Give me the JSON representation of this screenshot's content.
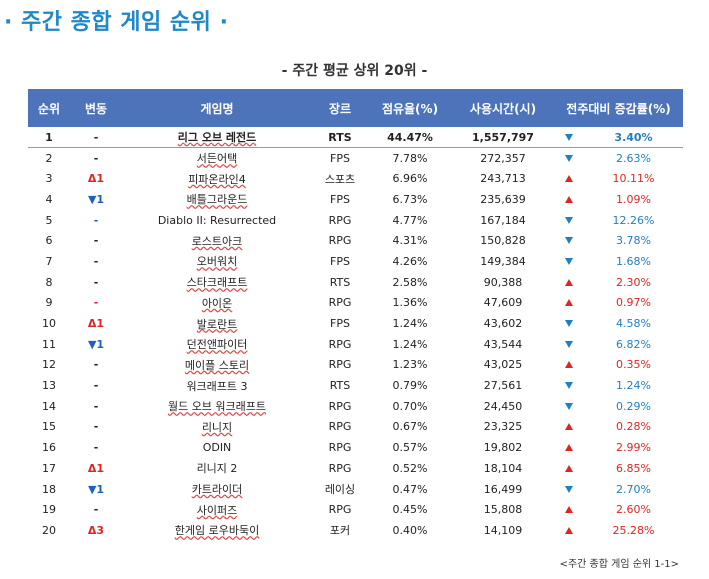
{
  "title": "· 주간 종합 게임 순위 ·",
  "subtitle": "- 주간 평균 상위 20위 -",
  "headers": [
    "순위",
    "변동",
    "게임명",
    "장르",
    "점유율(%)",
    "사용시간(시)",
    "전주대비 증감률(%)"
  ],
  "rows": [
    {
      "rank": "1",
      "change": "-",
      "change_dir": "flat",
      "game": "리그 오브 레전드",
      "genre": "RTS",
      "share": "44.47%",
      "hours": "1,557,797",
      "trend": "down",
      "delta": "3.40%"
    },
    {
      "rank": "2",
      "change": "-",
      "change_dir": "flat",
      "game": "서든어택",
      "genre": "FPS",
      "share": "7.78%",
      "hours": "272,357",
      "trend": "down",
      "delta": "2.63%"
    },
    {
      "rank": "3",
      "change": "Δ1",
      "change_dir": "up",
      "game": "피파온라인4",
      "genre": "스포츠",
      "share": "6.96%",
      "hours": "243,713",
      "trend": "up",
      "delta": "10.11%"
    },
    {
      "rank": "4",
      "change": "▼1",
      "change_dir": "down",
      "game": "배틀그라운드",
      "genre": "FPS",
      "share": "6.73%",
      "hours": "235,639",
      "trend": "up",
      "delta": "1.09%"
    },
    {
      "rank": "5",
      "change": "-",
      "change_dir": "flat-blue",
      "game": "Diablo II: Resurrected",
      "genre": "RPG",
      "share": "4.77%",
      "hours": "167,184",
      "trend": "down",
      "delta": "12.26%"
    },
    {
      "rank": "6",
      "change": "-",
      "change_dir": "flat",
      "game": "로스트아크",
      "genre": "RPG",
      "share": "4.31%",
      "hours": "150,828",
      "trend": "down",
      "delta": "3.78%"
    },
    {
      "rank": "7",
      "change": "-",
      "change_dir": "flat",
      "game": "오버워치",
      "genre": "FPS",
      "share": "4.26%",
      "hours": "149,384",
      "trend": "down",
      "delta": "1.68%"
    },
    {
      "rank": "8",
      "change": "-",
      "change_dir": "flat",
      "game": "스타크래프트",
      "genre": "RTS",
      "share": "2.58%",
      "hours": "90,388",
      "trend": "up",
      "delta": "2.30%"
    },
    {
      "rank": "9",
      "change": "-",
      "change_dir": "flat-red",
      "game": "아이온",
      "genre": "RPG",
      "share": "1.36%",
      "hours": "47,609",
      "trend": "up",
      "delta": "0.97%"
    },
    {
      "rank": "10",
      "change": "Δ1",
      "change_dir": "up",
      "game": "발로란트",
      "genre": "FPS",
      "share": "1.24%",
      "hours": "43,602",
      "trend": "down",
      "delta": "4.58%"
    },
    {
      "rank": "11",
      "change": "▼1",
      "change_dir": "down",
      "game": "던전앤파이터",
      "genre": "RPG",
      "share": "1.24%",
      "hours": "43,544",
      "trend": "down",
      "delta": "6.82%"
    },
    {
      "rank": "12",
      "change": "-",
      "change_dir": "flat",
      "game": "메이플 스토리",
      "genre": "RPG",
      "share": "1.23%",
      "hours": "43,025",
      "trend": "up",
      "delta": "0.35%"
    },
    {
      "rank": "13",
      "change": "-",
      "change_dir": "flat",
      "game": "워크래프트 3",
      "genre": "RTS",
      "share": "0.79%",
      "hours": "27,561",
      "trend": "down",
      "delta": "1.24%"
    },
    {
      "rank": "14",
      "change": "-",
      "change_dir": "flat",
      "game": "월드 오브 워크래프트",
      "genre": "RPG",
      "share": "0.70%",
      "hours": "24,450",
      "trend": "down",
      "delta": "0.29%"
    },
    {
      "rank": "15",
      "change": "-",
      "change_dir": "flat",
      "game": "리니지",
      "genre": "RPG",
      "share": "0.67%",
      "hours": "23,325",
      "trend": "up",
      "delta": "0.28%"
    },
    {
      "rank": "16",
      "change": "-",
      "change_dir": "flat",
      "game": "ODIN",
      "genre": "RPG",
      "share": "0.57%",
      "hours": "19,802",
      "trend": "up",
      "delta": "2.99%"
    },
    {
      "rank": "17",
      "change": "Δ1",
      "change_dir": "up",
      "game": "리니지 2",
      "genre": "RPG",
      "share": "0.52%",
      "hours": "18,104",
      "trend": "up",
      "delta": "6.85%"
    },
    {
      "rank": "18",
      "change": "▼1",
      "change_dir": "down",
      "game": "카트라이더",
      "genre": "레이싱",
      "share": "0.47%",
      "hours": "16,499",
      "trend": "down",
      "delta": "2.70%"
    },
    {
      "rank": "19",
      "change": "-",
      "change_dir": "flat",
      "game": "사이퍼즈",
      "genre": "RPG",
      "share": "0.45%",
      "hours": "15,808",
      "trend": "up",
      "delta": "2.60%"
    },
    {
      "rank": "20",
      "change": "Δ3",
      "change_dir": "up",
      "game": "한게임 로우바둑이",
      "genre": "포커",
      "share": "0.40%",
      "hours": "14,109",
      "trend": "up",
      "delta": "25.28%"
    }
  ],
  "footnote": "<주간 종합 게임 순위 1-1>",
  "colors": {
    "title": "#1f88c8",
    "header_bg": "#4d74bb",
    "up": "#e02424",
    "down": "#1f7fc0"
  }
}
